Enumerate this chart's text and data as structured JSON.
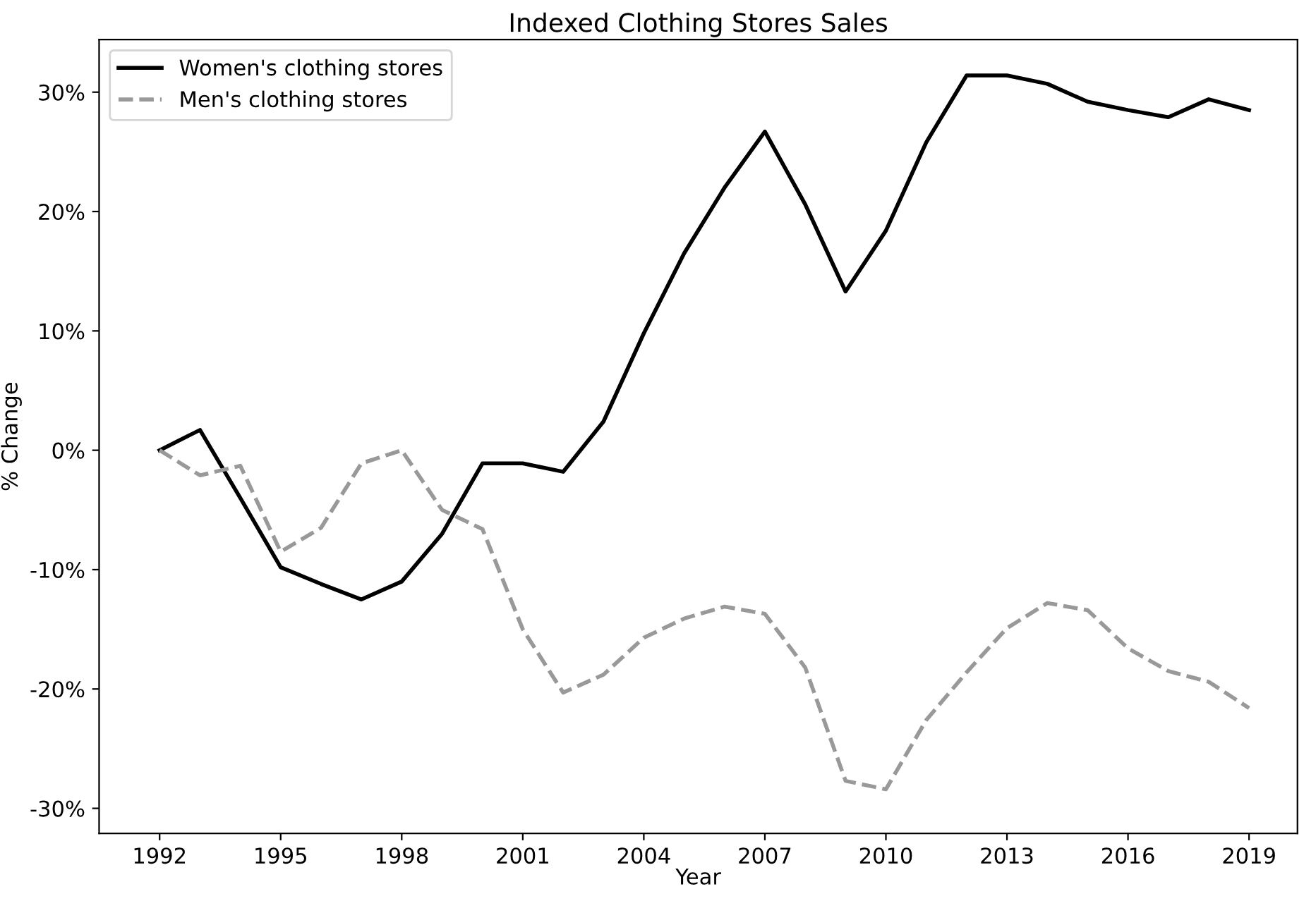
{
  "chart_data": {
    "type": "line",
    "title": "Indexed Clothing Stores Sales",
    "xlabel": "Year",
    "ylabel": "% Change",
    "x": [
      1992,
      1993,
      1994,
      1995,
      1996,
      1997,
      1998,
      1999,
      2000,
      2001,
      2002,
      2003,
      2004,
      2005,
      2006,
      2007,
      2008,
      2009,
      2010,
      2011,
      2012,
      2013,
      2014,
      2015,
      2016,
      2017,
      2018,
      2019
    ],
    "series": [
      {
        "name": "Women's clothing stores",
        "color": "#000000",
        "line_style": "solid",
        "values": [
          0,
          1.7,
          -4,
          -9.8,
          -11.2,
          -12.5,
          -11,
          -7,
          -1.1,
          -1.1,
          -1.8,
          2.4,
          9.8,
          16.5,
          22,
          26.7,
          20.6,
          13.3,
          18.4,
          25.8,
          31.4,
          31.4,
          30.7,
          29.2,
          28.5,
          27.9,
          29.4,
          28.5
        ]
      },
      {
        "name": "Men's clothing stores",
        "color": "#999999",
        "line_style": "dashed",
        "values": [
          0,
          -2.1,
          -1.3,
          -8.5,
          -6.5,
          -1.1,
          0,
          -5,
          -6.6,
          -15,
          -20.3,
          -18.8,
          -15.7,
          -14.1,
          -13.1,
          -13.7,
          -18.2,
          -27.7,
          -28.4,
          -22.6,
          -18.6,
          -14.9,
          -12.8,
          -13.4,
          -16.6,
          -18.5,
          -19.4,
          -21.6
        ]
      }
    ],
    "xlim": [
      1990.5,
      2020.2
    ],
    "ylim": [
      -32.1,
      34.4
    ],
    "xticks": [
      1992,
      1995,
      1998,
      2001,
      2004,
      2007,
      2010,
      2013,
      2016,
      2019
    ],
    "yticks": [
      {
        "value": -30,
        "label": "-30%"
      },
      {
        "value": -20,
        "label": "-20%"
      },
      {
        "value": -10,
        "label": "-10%"
      },
      {
        "value": 0,
        "label": "0%"
      },
      {
        "value": 10,
        "label": "10%"
      },
      {
        "value": 20,
        "label": "20%"
      },
      {
        "value": 30,
        "label": "30%"
      }
    ],
    "grid": false,
    "legend": "top left",
    "marker": "none"
  }
}
